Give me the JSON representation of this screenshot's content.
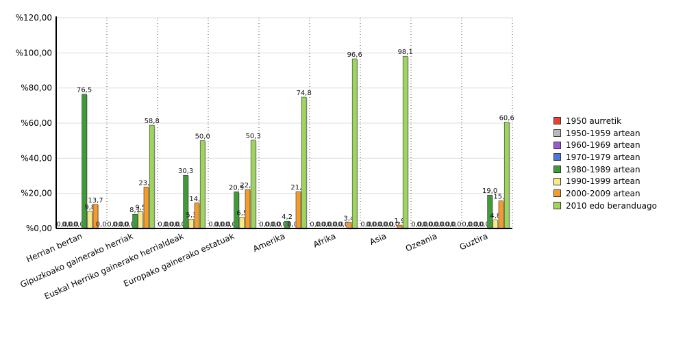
{
  "chart_data": {
    "type": "bar",
    "title": "",
    "xlabel": "",
    "ylabel": "",
    "ylim": [
      0,
      120
    ],
    "yticks": [
      "%0,00",
      "%20,00",
      "%40,00",
      "%60,00",
      "%80,00",
      "%100,00",
      "%120,00"
    ],
    "grid": true,
    "legend_position": "right",
    "categories": [
      "Herrian bertan",
      "Gipuzkoako gainerako herriak",
      "Euskal Herriko gainerako herrialdeak",
      "Europako gainerako estatuak",
      "Amerika",
      "Afrika",
      "Asia",
      "Ozeania",
      "Guztira"
    ],
    "series": [
      {
        "name": "1950 aurretik",
        "color": "#e8412f",
        "values": [
          0.0,
          0.0,
          0.0,
          0.0,
          0.0,
          0.0,
          0.0,
          0.0,
          0.0
        ],
        "labels": [
          "0,0",
          "0,0",
          "0,0",
          "0,0",
          "0,0",
          "0,0",
          "0,0",
          "0,0",
          "0,0"
        ]
      },
      {
        "name": "1950-1959 artean",
        "color": "#b9b9b9",
        "values": [
          0.0,
          0.0,
          0.0,
          0.0,
          0.0,
          0.0,
          0.0,
          0.0,
          0.0
        ],
        "labels": [
          "0,0",
          "0,0",
          "0,0",
          "0,0",
          "0,0",
          "0,0",
          "0,0",
          "0,0",
          "0,0"
        ]
      },
      {
        "name": "1960-1969 artean",
        "color": "#9b59d0",
        "values": [
          0.0,
          0.0,
          0.0,
          0.0,
          0.0,
          0.0,
          0.0,
          0.0,
          0.0
        ],
        "labels": [
          "0,0",
          "0,0",
          "0,0",
          "0,0",
          "0,0",
          "0,0",
          "0,0",
          "0,0",
          "0,0"
        ]
      },
      {
        "name": "1970-1979 artean",
        "color": "#4a78d8",
        "values": [
          0.0,
          0.0,
          0.0,
          0.0,
          0.0,
          0.0,
          0.0,
          0.0,
          0.0
        ],
        "labels": [
          "0,0",
          "0,0",
          "0,0",
          "0,0",
          "0,0",
          "0,0",
          "0,0",
          "0,0",
          "0,0"
        ]
      },
      {
        "name": "1980-1989 artean",
        "color": "#3f9a38",
        "values": [
          76.5,
          8.1,
          30.3,
          20.9,
          4.2,
          0.0,
          0.0,
          0.0,
          19.0
        ],
        "labels": [
          "76,5",
          "8,1",
          "30,3",
          "20,9",
          "4,2",
          "0,0",
          "0,0",
          "0,0",
          "19,0"
        ]
      },
      {
        "name": "1990-1999 artean",
        "color": "#f7ea8a",
        "values": [
          9.8,
          9.5,
          5.3,
          6.5,
          0.0,
          0.0,
          0.0,
          0.0,
          4.8
        ],
        "labels": [
          "9,8",
          "9,5",
          "5,3",
          "6,5",
          "0,0",
          "0,0",
          "0,0",
          "0,0",
          "4,8"
        ]
      },
      {
        "name": "2000-2009 artean",
        "color": "#f59b2b",
        "values": [
          13.7,
          23.6,
          14.5,
          22.2,
          21.0,
          3.4,
          1.9,
          0.0,
          15.7
        ],
        "labels": [
          "13,7",
          "23,6",
          "14,5",
          "22,2",
          "21,0",
          "3,4",
          "1,9",
          "0,0",
          "15,7"
        ]
      },
      {
        "name": "2010 edo beranduago",
        "color": "#9fd45f",
        "values": [
          0.0,
          58.8,
          50.0,
          50.3,
          74.8,
          96.6,
          98.1,
          0.0,
          60.6
        ],
        "labels": [
          "0,0",
          "58,8",
          "50,0",
          "50,3",
          "74,8",
          "96,6",
          "98,1",
          "0,0",
          "60,6"
        ]
      }
    ]
  }
}
